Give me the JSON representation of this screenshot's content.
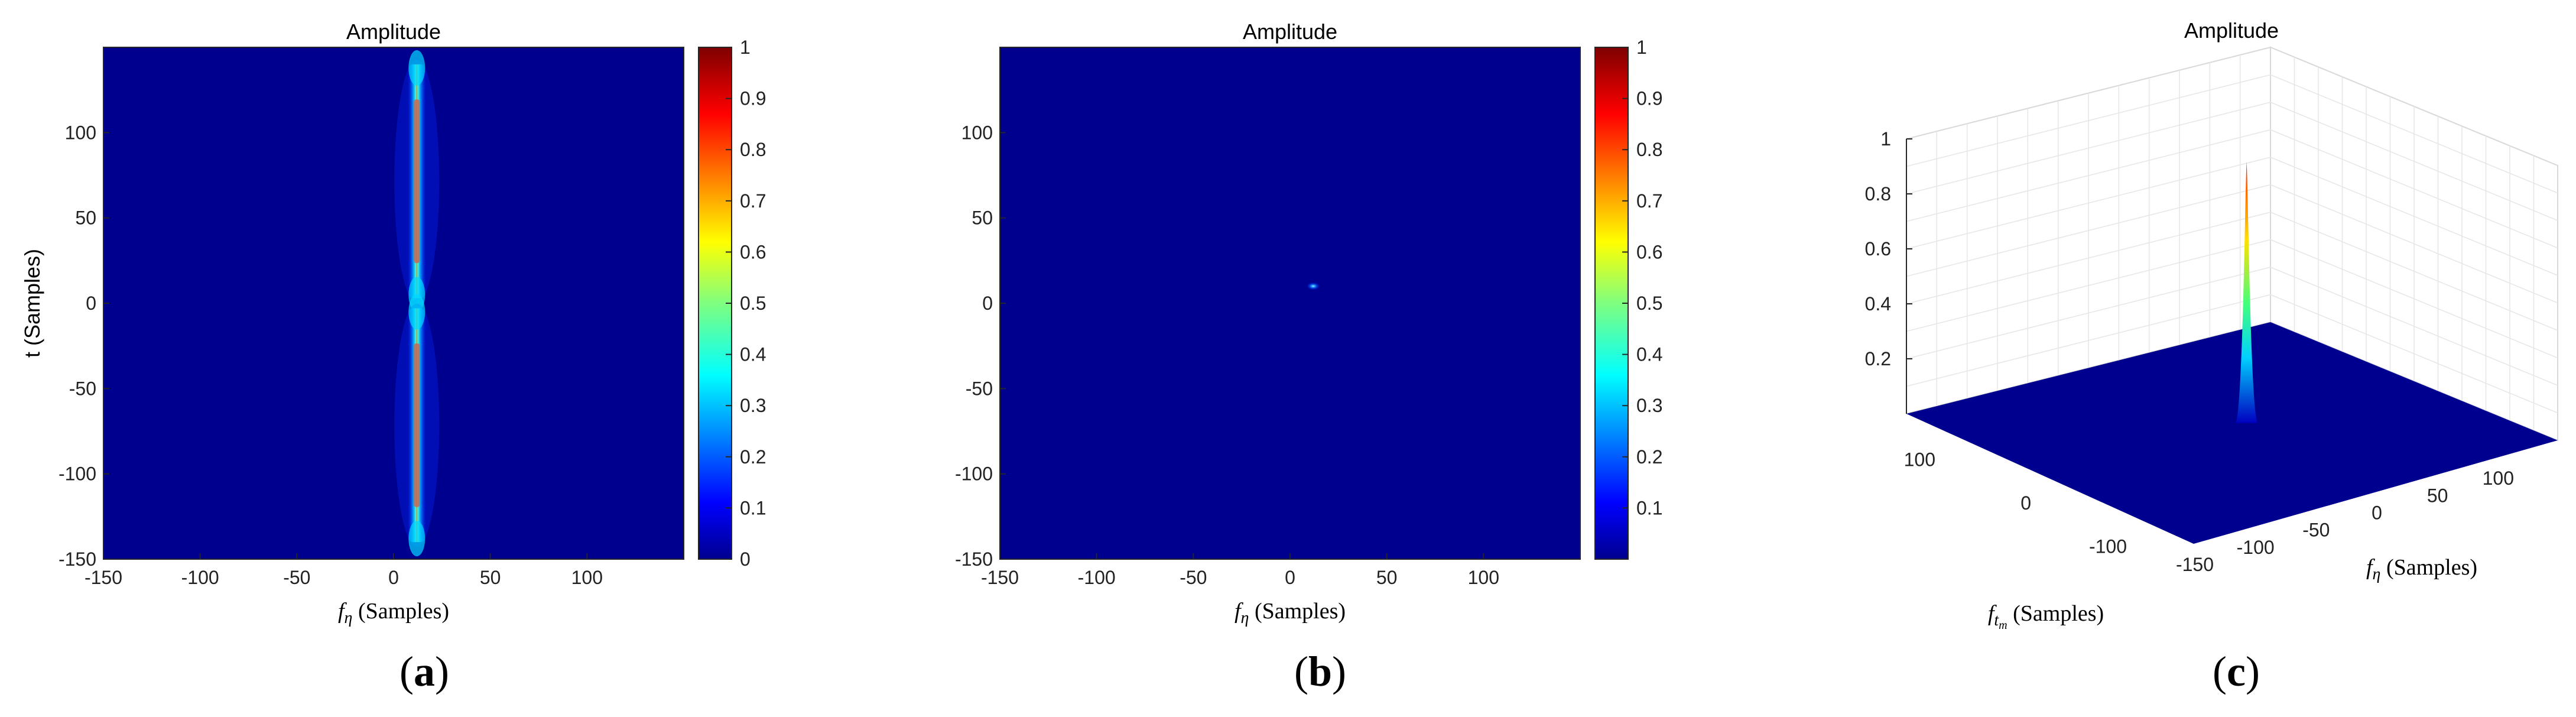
{
  "chart_data": [
    {
      "type": "heatmap",
      "title": "Amplitude",
      "xlabel_symbol": "f",
      "xlabel_sub": "η",
      "xlabel_unit": "(Samples)",
      "ylabel": "t (Samples)",
      "xlim": [
        -150,
        150
      ],
      "ylim": [
        -150,
        150
      ],
      "x_ticks": [
        "-150",
        "-100",
        "-50",
        "0",
        "50",
        "100"
      ],
      "y_ticks": [
        "100",
        "50",
        "0",
        "-50",
        "-100",
        "-150"
      ],
      "colorbar_ticks": [
        "1",
        "0.9",
        "0.8",
        "0.7",
        "0.6",
        "0.5",
        "0.4",
        "0.3",
        "0.2",
        "0.1",
        "0"
      ],
      "colorbar_range": [
        0,
        1
      ],
      "colormap": "jet",
      "background_color": "#00008f",
      "features": [
        {
          "kind": "vertical_streak",
          "x": 12,
          "y_range": [
            3,
            140
          ],
          "peak": 0.9
        },
        {
          "kind": "vertical_streak",
          "x": 12,
          "y_range": [
            -140,
            -3
          ],
          "peak": 0.9
        }
      ],
      "caption": "a"
    },
    {
      "type": "heatmap",
      "title": "Amplitude",
      "xlabel_symbol": "f",
      "xlabel_sub": "η",
      "xlabel_unit": "(Samples)",
      "ylabel": "",
      "xlim": [
        -150,
        150
      ],
      "ylim": [
        -150,
        150
      ],
      "x_ticks": [
        "-150",
        "-100",
        "-50",
        "0",
        "50",
        "100"
      ],
      "y_ticks": [
        "100",
        "50",
        "0",
        "-50",
        "-100",
        "-150"
      ],
      "colorbar_ticks": [
        "1",
        "0.9",
        "0.8",
        "0.7",
        "0.6",
        "0.5",
        "0.4",
        "0.3",
        "0.2",
        "0.1"
      ],
      "colorbar_range": [
        0,
        1
      ],
      "colormap": "jet",
      "background_color": "#00008f",
      "features": [
        {
          "kind": "point",
          "x": 12,
          "y": 10,
          "peak": 0.3
        }
      ],
      "caption": "b"
    },
    {
      "type": "surface",
      "title": "Amplitude",
      "z_ticks": [
        "1",
        "0.8",
        "0.6",
        "0.4",
        "0.2"
      ],
      "zlim": [
        0,
        1
      ],
      "x_ticks": [
        "-150",
        "-100",
        "-50",
        "0",
        "50",
        "100"
      ],
      "y_ticks": [
        "100",
        "0",
        "-100"
      ],
      "xlabel_symbol": "f",
      "xlabel_sub": "η",
      "xlabel_unit": "(Samples)",
      "ylabel_symbol": "f",
      "ylabel_sub": "t",
      "ylabel_subsub": "m",
      "ylabel_unit": "(Samples)",
      "colormap": "jet",
      "grid": true,
      "peak": {
        "x": 12,
        "y": 0,
        "z": 0.95
      },
      "caption": "c"
    }
  ]
}
